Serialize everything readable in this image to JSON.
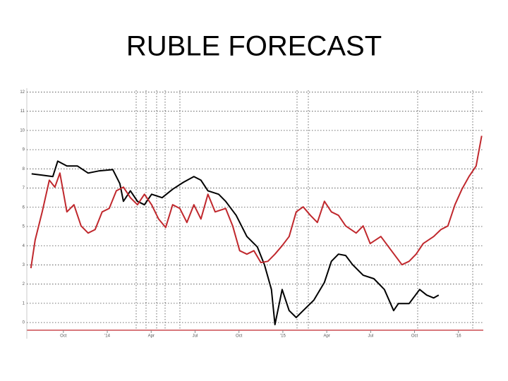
{
  "chart_data": {
    "type": "line",
    "title": "RUBLE FORECAST",
    "xlim": [
      -2.5,
      28.7
    ],
    "xticks": [
      {
        "value": 0,
        "label": "Oct"
      },
      {
        "value": 3,
        "label": "'14"
      },
      {
        "value": 6,
        "label": "Apr"
      },
      {
        "value": 9,
        "label": "Jul"
      },
      {
        "value": 12,
        "label": "Oct"
      },
      {
        "value": 15,
        "label": "'15"
      },
      {
        "value": 18,
        "label": "Apr"
      },
      {
        "value": 21,
        "label": "Jul"
      },
      {
        "value": 24,
        "label": "Oct"
      },
      {
        "value": 27,
        "label": "'16"
      }
    ],
    "ylim": [
      -0.4,
      12.2
    ],
    "yticks": [
      0,
      1,
      2,
      3,
      4,
      5,
      6,
      7,
      8,
      9,
      10,
      11,
      12
    ],
    "grid": true,
    "series": [
      {
        "color": "#000000",
        "x": [
          -2.17,
          -1.45,
          -0.72,
          -0.39,
          0.24,
          0.96,
          1.69,
          2.41,
          3.38,
          3.86,
          4.1,
          4.58,
          5.06,
          5.54,
          6.03,
          6.75,
          7.47,
          8.2,
          8.92,
          9.4,
          9.88,
          10.61,
          11.09,
          11.81,
          12.54,
          13.26,
          13.74,
          14.22,
          14.46,
          14.95,
          15.43,
          15.91,
          16.39,
          17.12,
          17.84,
          18.32,
          18.8,
          19.29,
          19.77,
          20.49,
          21.22,
          21.94,
          22.57,
          22.9,
          23.63,
          24.35,
          24.83,
          25.31,
          25.65
        ],
        "values": [
          7.74,
          7.67,
          7.6,
          8.4,
          8.15,
          8.15,
          7.78,
          7.89,
          7.96,
          7.23,
          6.31,
          6.86,
          6.31,
          6.13,
          6.68,
          6.5,
          6.94,
          7.3,
          7.6,
          7.41,
          6.86,
          6.68,
          6.31,
          5.58,
          4.48,
          3.93,
          3.01,
          1.72,
          -0.11,
          1.72,
          0.62,
          0.26,
          0.62,
          1.17,
          2.09,
          3.19,
          3.56,
          3.49,
          3.01,
          2.46,
          2.28,
          1.72,
          0.62,
          0.99,
          0.99,
          1.72,
          1.43,
          1.28,
          1.43
        ]
      },
      {
        "color": "#c0282d",
        "x": [
          -2.22,
          -1.93,
          -1.45,
          -0.96,
          -0.58,
          -0.24,
          0.24,
          0.72,
          1.21,
          1.69,
          2.17,
          2.65,
          3.13,
          3.62,
          4.1,
          4.58,
          5.06,
          5.54,
          6.03,
          6.51,
          6.99,
          7.47,
          7.96,
          8.44,
          8.92,
          9.4,
          9.88,
          10.37,
          11.09,
          11.57,
          12.05,
          12.54,
          13.02,
          13.5,
          13.98,
          14.46,
          14.95,
          15.43,
          15.91,
          16.39,
          16.88,
          17.36,
          17.84,
          18.32,
          18.8,
          19.29,
          20.01,
          20.49,
          20.97,
          21.7,
          22.42,
          23.14,
          23.63,
          24.11,
          24.59,
          25.31,
          25.8,
          26.28,
          26.76,
          27.24,
          27.72,
          28.21,
          28.59
        ],
        "values": [
          2.83,
          4.29,
          5.76,
          7.41,
          7.05,
          7.78,
          5.76,
          6.13,
          5.03,
          4.66,
          4.84,
          5.76,
          5.94,
          6.86,
          7.05,
          6.5,
          6.13,
          6.68,
          6.13,
          5.39,
          4.95,
          6.13,
          5.94,
          5.21,
          6.13,
          5.39,
          6.68,
          5.76,
          5.94,
          5.03,
          3.74,
          3.56,
          3.74,
          3.12,
          3.19,
          3.56,
          4.0,
          4.48,
          5.76,
          6.02,
          5.58,
          5.21,
          6.31,
          5.76,
          5.58,
          5.03,
          4.66,
          5.03,
          4.11,
          4.48,
          3.74,
          3.01,
          3.19,
          3.56,
          4.11,
          4.48,
          4.84,
          5.03,
          6.13,
          6.94,
          7.6,
          8.15,
          9.72
        ]
      }
    ]
  }
}
